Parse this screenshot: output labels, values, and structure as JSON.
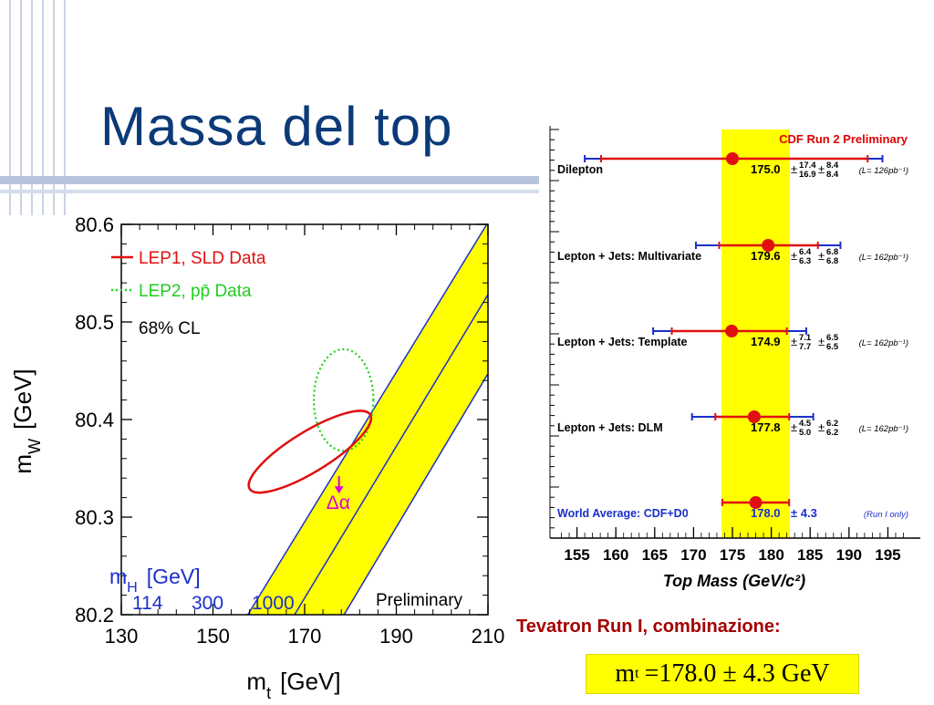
{
  "slide": {
    "title": "Massa del top",
    "combination_title": "Tevatron Run I, combinazione:",
    "formula": {
      "symbol": "m",
      "subscript": "t",
      "expression": "=178.0 ± 4.3 GeV"
    }
  },
  "colors": {
    "title": "#0c3a78",
    "band": "#ffff00",
    "lep1": "#e01010",
    "lep2": "#22cc22",
    "higgs": "#1a2fcc",
    "arrow": "#dd00dd",
    "cdf_label": "#dd0000",
    "world_avg": "#1a2fcc",
    "combo_title": "#a30000"
  },
  "chart_data": [
    {
      "type": "scatter",
      "xlabel": "m_t [GeV]",
      "ylabel": "m_W [GeV]",
      "xlim": [
        130,
        210
      ],
      "ylim": [
        80.2,
        80.6
      ],
      "x_ticks": [
        "130",
        "150",
        "170",
        "190",
        "210"
      ],
      "y_ticks": [
        "80.2",
        "80.3",
        "80.4",
        "80.5",
        "80.6"
      ],
      "legend": [
        {
          "label": "LEP1, SLD Data",
          "style": "solid",
          "color": "#e01010"
        },
        {
          "label": "LEP2, pp̄ Data",
          "style": "dotted",
          "color": "#22cc22"
        }
      ],
      "cl_label": "68% CL",
      "higgs_label": "m_H [GeV]",
      "higgs_values": [
        "114",
        "300",
        "1000"
      ],
      "higgs_lines": [
        {
          "mh": "114",
          "points": [
            [
              157.6,
              80.2
            ],
            [
              210,
              80.602
            ]
          ]
        },
        {
          "mh": "300",
          "points": [
            [
              167.8,
              80.2
            ],
            [
              210,
              80.528
            ]
          ]
        },
        {
          "mh": "1000",
          "points": [
            [
              178.6,
              80.2
            ],
            [
              210,
              80.447
            ]
          ]
        }
      ],
      "lep1_ellipse": {
        "center": [
          170.7,
          80.369
        ],
        "points": [
          [
            158,
            80.328
          ],
          [
            175,
            80.392
          ],
          [
            184.3,
            80.41
          ],
          [
            168,
            80.358
          ],
          [
            158.5,
            80.335
          ]
        ]
      },
      "lep2_ellipse": {
        "center": [
          178.5,
          80.42
        ],
        "rx_gev": 6.5,
        "ry_gev": 0.052
      },
      "arrow_label": "Δα",
      "arrow": {
        "x": 177.5,
        "from_y": 80.342,
        "to_y": 80.325
      },
      "footer": "Preliminary"
    },
    {
      "type": "scatter",
      "title": "CDF Run 2 Preliminary",
      "xlabel": "Top Mass (GeV/c²)",
      "x_ticks": [
        "155",
        "160",
        "165",
        "170",
        "175",
        "180",
        "185",
        "190",
        "195"
      ],
      "xlim": [
        152,
        198
      ],
      "band": [
        173.6,
        182.4
      ],
      "series": [
        {
          "name": "Dilepton",
          "value": 175.0,
          "text": "175.0",
          "stat_plus": "17.4",
          "stat_minus": "16.9",
          "syst_plus": "8.4",
          "syst_minus": "8.4",
          "lumi": "(L= 126pb⁻¹)",
          "stat_range": [
            158.1,
            192.4
          ],
          "total_range": [
            156.0,
            194.3
          ]
        },
        {
          "name": "Lepton + Jets: Multivariate",
          "value": 179.6,
          "text": "179.6",
          "stat_plus": "6.4",
          "stat_minus": "6.3",
          "syst_plus": "6.8",
          "syst_minus": "6.8",
          "lumi": "(L= 162pb⁻¹)",
          "stat_range": [
            173.3,
            186.0
          ],
          "total_range": [
            170.3,
            188.9
          ]
        },
        {
          "name": "Lepton + Jets: Template",
          "value": 174.9,
          "text": "174.9",
          "stat_plus": "7.1",
          "stat_minus": "7.7",
          "syst_plus": "6.5",
          "syst_minus": "6.5",
          "lumi": "(L= 162pb⁻¹)",
          "stat_range": [
            167.2,
            182.0
          ],
          "total_range": [
            164.8,
            184.5
          ]
        },
        {
          "name": "Lepton + Jets: DLM",
          "value": 177.8,
          "text": "177.8",
          "stat_plus": "4.5",
          "stat_minus": "5.0",
          "syst_plus": "6.2",
          "syst_minus": "6.2",
          "lumi": "(L= 162pb⁻¹)",
          "stat_range": [
            172.8,
            182.3
          ],
          "total_range": [
            169.8,
            185.4
          ]
        },
        {
          "name": "World Average: CDF+D0",
          "value": 178.0,
          "text": "178.0",
          "total_err": "4.3",
          "lumi": "(Run I only)",
          "stat_range": [
            173.7,
            182.3
          ]
        }
      ]
    }
  ]
}
